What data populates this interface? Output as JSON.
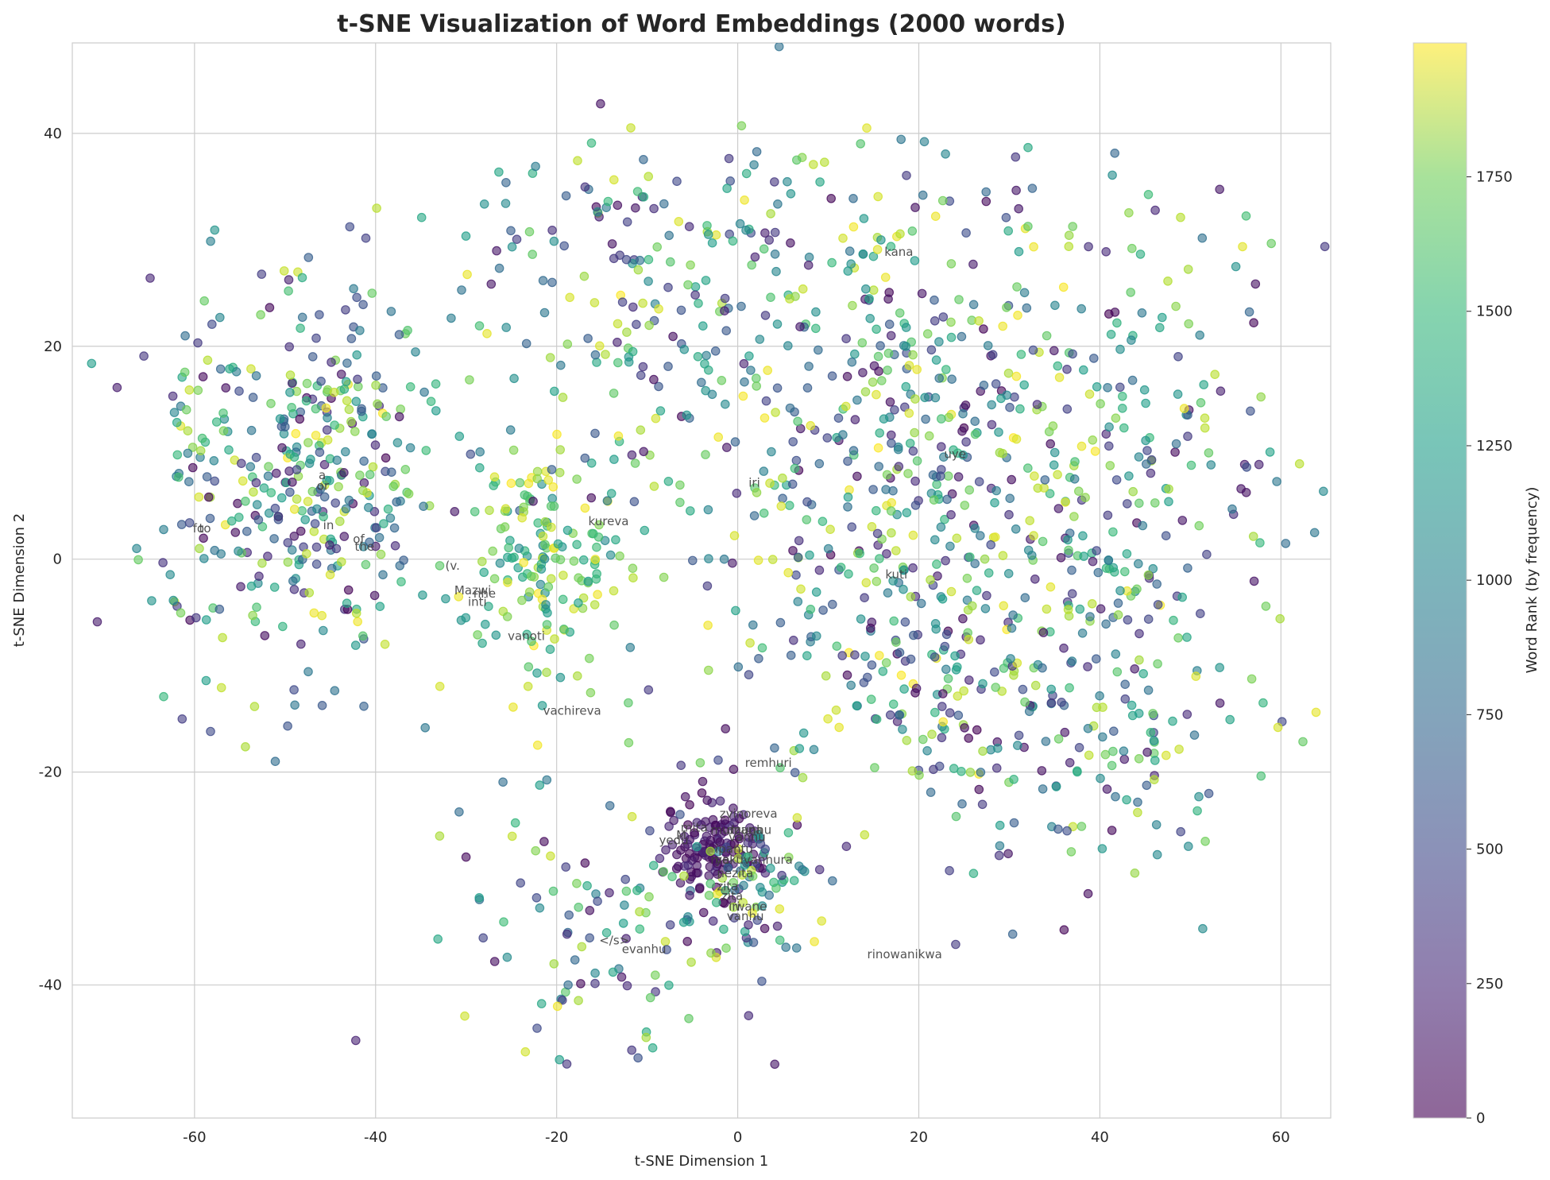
{
  "chart_data": {
    "type": "scatter",
    "title": "t-SNE Visualization of Word Embeddings (2000 words)",
    "xlabel": "t-SNE Dimension 1",
    "ylabel": "t-SNE Dimension 2",
    "xlim": [
      -73.5,
      65.5
    ],
    "ylim": [
      -52.5,
      48.5
    ],
    "xticks": [
      -60,
      -40,
      -20,
      0,
      20,
      40,
      60
    ],
    "yticks": [
      -40,
      -20,
      0,
      20,
      40
    ],
    "xtick_labels": [
      "-60",
      "-40",
      "-20",
      "0",
      "20",
      "40",
      "60"
    ],
    "ytick_labels": [
      "-40",
      "-20",
      "0",
      "20",
      "40"
    ],
    "grid": true,
    "colormap": "viridis",
    "point_alpha": 0.6,
    "n_points": 2000,
    "colorbar": {
      "label": "Word Rank (by frequency)",
      "range": [
        0,
        1999
      ],
      "ticks": [
        0,
        250,
        500,
        750,
        1000,
        1250,
        1500,
        1750
      ],
      "tick_labels": [
        "0",
        "250",
        "500",
        "750",
        "1000",
        "1250",
        "1500",
        "1750"
      ]
    },
    "annotations": [
      {
        "text": "kana",
        "x": 16.2,
        "y": 28.5
      },
      {
        "text": "uye",
        "x": 22.8,
        "y": 9.5
      },
      {
        "text": "iri",
        "x": 1.2,
        "y": 6.8
      },
      {
        "text": "kureva",
        "x": -16.5,
        "y": 3.2
      },
      {
        "text": "kuti",
        "x": 16.3,
        "y": -1.8
      },
      {
        "text": "a",
        "x": -46.3,
        "y": 7.5
      },
      {
        "text": "or",
        "x": -46.5,
        "y": 6.5
      },
      {
        "text": "to",
        "x": -59.5,
        "y": 2.5
      },
      {
        "text": "fo",
        "x": -60.2,
        "y": 2.5
      },
      {
        "text": "in",
        "x": -45.8,
        "y": 2.8
      },
      {
        "text": "of",
        "x": -42.5,
        "y": 1.5
      },
      {
        "text": "the",
        "x": -42.3,
        "y": 0.8
      },
      {
        "text": "(v.",
        "x": -32.3,
        "y": -1.0
      },
      {
        "text": "Mazwi",
        "x": -31.3,
        "y": -3.3
      },
      {
        "text": "nhe",
        "x": -29.2,
        "y": -3.6
      },
      {
        "text": "inti",
        "x": -29.8,
        "y": -4.4
      },
      {
        "text": "vanoti",
        "x": -25.4,
        "y": -7.6
      },
      {
        "text": "vachireva",
        "x": -21.5,
        "y": -14.6
      },
      {
        "text": "remhuri",
        "x": 0.8,
        "y": -19.5
      },
      {
        "text": "zvinoreva",
        "x": -2.0,
        "y": -24.3
      },
      {
        "text": "mita",
        "x": -6.3,
        "y": -25.6
      },
      {
        "text": "yedu",
        "x": -8.7,
        "y": -26.8
      },
      {
        "text": "M",
        "x": -6.8,
        "y": -26.3
      },
      {
        "text": "mumunhu",
        "x": -3.0,
        "y": -25.8
      },
      {
        "text": "dzana",
        "x": -1.2,
        "y": -25.8
      },
      {
        "text": "vanhu",
        "x": -1.0,
        "y": -26.5
      },
      {
        "text": "ipantu",
        "x": -2.5,
        "y": -27.6
      },
      {
        "text": "yekuvanhura",
        "x": -2.5,
        "y": -28.6
      },
      {
        "text": "mai",
        "x": -3.0,
        "y": -28.6
      },
      {
        "text": "nezita",
        "x": -2.3,
        "y": -29.9
      },
      {
        "text": "zita",
        "x": -2.3,
        "y": -31.1
      },
      {
        "text": "zita",
        "x": -1.8,
        "y": -32.0
      },
      {
        "text": "iri",
        "x": -1.0,
        "y": -33.0
      },
      {
        "text": "wane",
        "x": -0.3,
        "y": -33.0
      },
      {
        "text": "vanhu",
        "x": -1.2,
        "y": -33.9
      },
      {
        "text": "</s>",
        "x": -15.3,
        "y": -36.2
      },
      {
        "text": "evanhu",
        "x": -12.8,
        "y": -37.0
      },
      {
        "text": "rinowanikwa",
        "x": 14.3,
        "y": -37.5
      }
    ],
    "clusters": [
      {
        "name": "left-dense",
        "cx": -47,
        "cy": 8,
        "sx": 7,
        "sy": 9,
        "n": 340,
        "rank_bias": "mixed"
      },
      {
        "name": "far-left-strip",
        "cx": -60,
        "cy": 6,
        "sx": 3,
        "sy": 10,
        "n": 60,
        "rank_bias": "mixed"
      },
      {
        "name": "center-left",
        "cx": -22,
        "cy": 0,
        "sx": 5,
        "sy": 6,
        "n": 160,
        "rank_bias": "high"
      },
      {
        "name": "upper-center",
        "cx": -8,
        "cy": 20,
        "sx": 12,
        "sy": 10,
        "n": 180,
        "rank_bias": "mixed"
      },
      {
        "name": "upper-right",
        "cx": 20,
        "cy": 13,
        "sx": 10,
        "sy": 10,
        "n": 300,
        "rank_bias": "mixed"
      },
      {
        "name": "right-center",
        "cx": 18,
        "cy": -8,
        "sx": 10,
        "sy": 8,
        "n": 200,
        "rank_bias": "mixed"
      },
      {
        "name": "far-right",
        "cx": 40,
        "cy": -12,
        "sx": 10,
        "sy": 12,
        "n": 230,
        "rank_bias": "mixed"
      },
      {
        "name": "far-right-top",
        "cx": 45,
        "cy": 12,
        "sx": 8,
        "sy": 10,
        "n": 120,
        "rank_bias": "mixed"
      },
      {
        "name": "bottom-purple-core",
        "cx": -3,
        "cy": -27,
        "sx": 2.5,
        "sy": 2.5,
        "n": 120,
        "rank_bias": "low"
      },
      {
        "name": "bottom-center",
        "cx": 2,
        "cy": -31,
        "sx": 4,
        "sy": 4,
        "n": 90,
        "rank_bias": "mixed"
      },
      {
        "name": "bottom-left-mix",
        "cx": -15,
        "cy": -35,
        "sx": 8,
        "sy": 6,
        "n": 100,
        "rank_bias": "mixed"
      },
      {
        "name": "top-scatter",
        "cx": 5,
        "cy": 32,
        "sx": 25,
        "sy": 4,
        "n": 100,
        "rank_bias": "mixed"
      }
    ]
  },
  "figure": {
    "title": "t-SNE Visualization of Word Embeddings (2000 words)",
    "xlabel": "t-SNE Dimension 1",
    "ylabel": "t-SNE Dimension 2",
    "colorbar_label": "Word Rank (by frequency)"
  }
}
